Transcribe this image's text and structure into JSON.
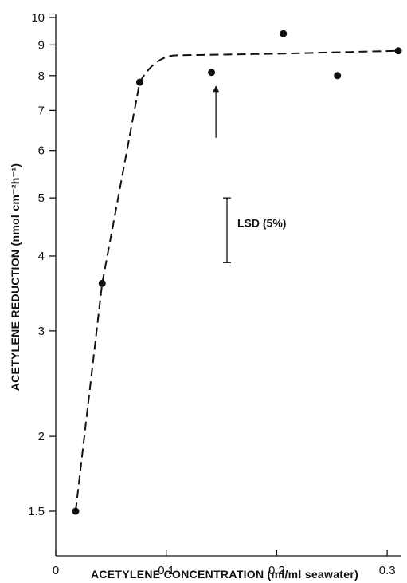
{
  "chart_data": {
    "type": "scatter",
    "title": "",
    "xlabel": "ACETYLENE CONCENTRATION (ml/ml seawater)",
    "ylabel": "ACETYLENE REDUCTION (nmol cm⁻²h⁻¹)",
    "xlim": [
      0,
      0.31
    ],
    "ylim": [
      1.2,
      10
    ],
    "y_scale": "log",
    "grid": false,
    "x_ticks": [
      0,
      0.1,
      0.2,
      0.3
    ],
    "x_tick_labels": [
      "0",
      "0.1",
      "0.2",
      "0.3"
    ],
    "y_ticks": [
      1.5,
      2,
      3,
      4,
      5,
      6,
      7,
      8,
      9,
      10
    ],
    "y_tick_labels": [
      "1.5",
      "2",
      "3",
      "4",
      "5",
      "6",
      "7",
      "8",
      "9",
      "10"
    ],
    "series": [
      {
        "points": [
          {
            "x": 0.018,
            "y": 1.5
          },
          {
            "x": 0.042,
            "y": 3.6
          },
          {
            "x": 0.076,
            "y": 7.8
          },
          {
            "x": 0.141,
            "y": 8.1
          },
          {
            "x": 0.206,
            "y": 9.4
          },
          {
            "x": 0.255,
            "y": 8.0
          },
          {
            "x": 0.31,
            "y": 8.8
          }
        ]
      }
    ],
    "fit_curve": [
      {
        "x": 0.018,
        "y": 1.5
      },
      {
        "x": 0.042,
        "y": 3.6
      },
      {
        "x": 0.076,
        "y": 7.8
      },
      {
        "x": 0.09,
        "y": 8.45
      },
      {
        "x": 0.11,
        "y": 8.65
      },
      {
        "x": 0.2,
        "y": 8.7
      },
      {
        "x": 0.31,
        "y": 8.8
      }
    ],
    "annotations": [
      {
        "type": "arrow",
        "x": 0.145,
        "y_from": 6.3,
        "y_to": 7.7
      },
      {
        "type": "error_bar",
        "label": "LSD (5%)",
        "x": 0.155,
        "y_low": 3.9,
        "y_high": 5.0
      }
    ]
  }
}
